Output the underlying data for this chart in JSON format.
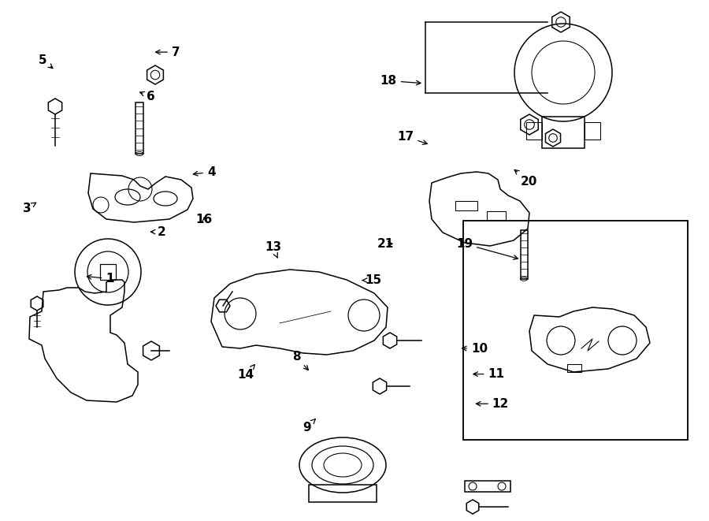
{
  "bg": "#ffffff",
  "lc": "#000000",
  "lw": 1.1,
  "fig_w": 9.0,
  "fig_h": 6.61,
  "labels": {
    "1": [
      0.155,
      0.535,
      0.118,
      0.53
    ],
    "2": [
      0.228,
      0.445,
      0.208,
      0.445
    ],
    "3": [
      0.038,
      0.4,
      0.052,
      0.388
    ],
    "4": [
      0.298,
      0.33,
      0.268,
      0.335
    ],
    "5": [
      0.06,
      0.115,
      0.078,
      0.135
    ],
    "6": [
      0.213,
      0.185,
      0.193,
      0.175
    ],
    "7": [
      0.248,
      0.1,
      0.215,
      0.1
    ],
    "8": [
      0.418,
      0.685,
      0.438,
      0.715
    ],
    "9": [
      0.433,
      0.82,
      0.448,
      0.8
    ],
    "10": [
      0.676,
      0.67,
      0.647,
      0.668
    ],
    "11": [
      0.7,
      0.718,
      0.663,
      0.718
    ],
    "12": [
      0.706,
      0.775,
      0.667,
      0.775
    ],
    "13": [
      0.385,
      0.475,
      0.393,
      0.5
    ],
    "14": [
      0.347,
      0.72,
      0.362,
      0.695
    ],
    "15": [
      0.526,
      0.538,
      0.51,
      0.538
    ],
    "16": [
      0.288,
      0.422,
      0.288,
      0.412
    ],
    "17": [
      0.572,
      0.262,
      0.607,
      0.278
    ],
    "18": [
      0.548,
      0.155,
      0.598,
      0.16
    ],
    "19": [
      0.655,
      0.468,
      0.735,
      0.498
    ],
    "20": [
      0.746,
      0.348,
      0.722,
      0.322
    ],
    "21": [
      0.544,
      0.468,
      0.558,
      0.468
    ]
  }
}
